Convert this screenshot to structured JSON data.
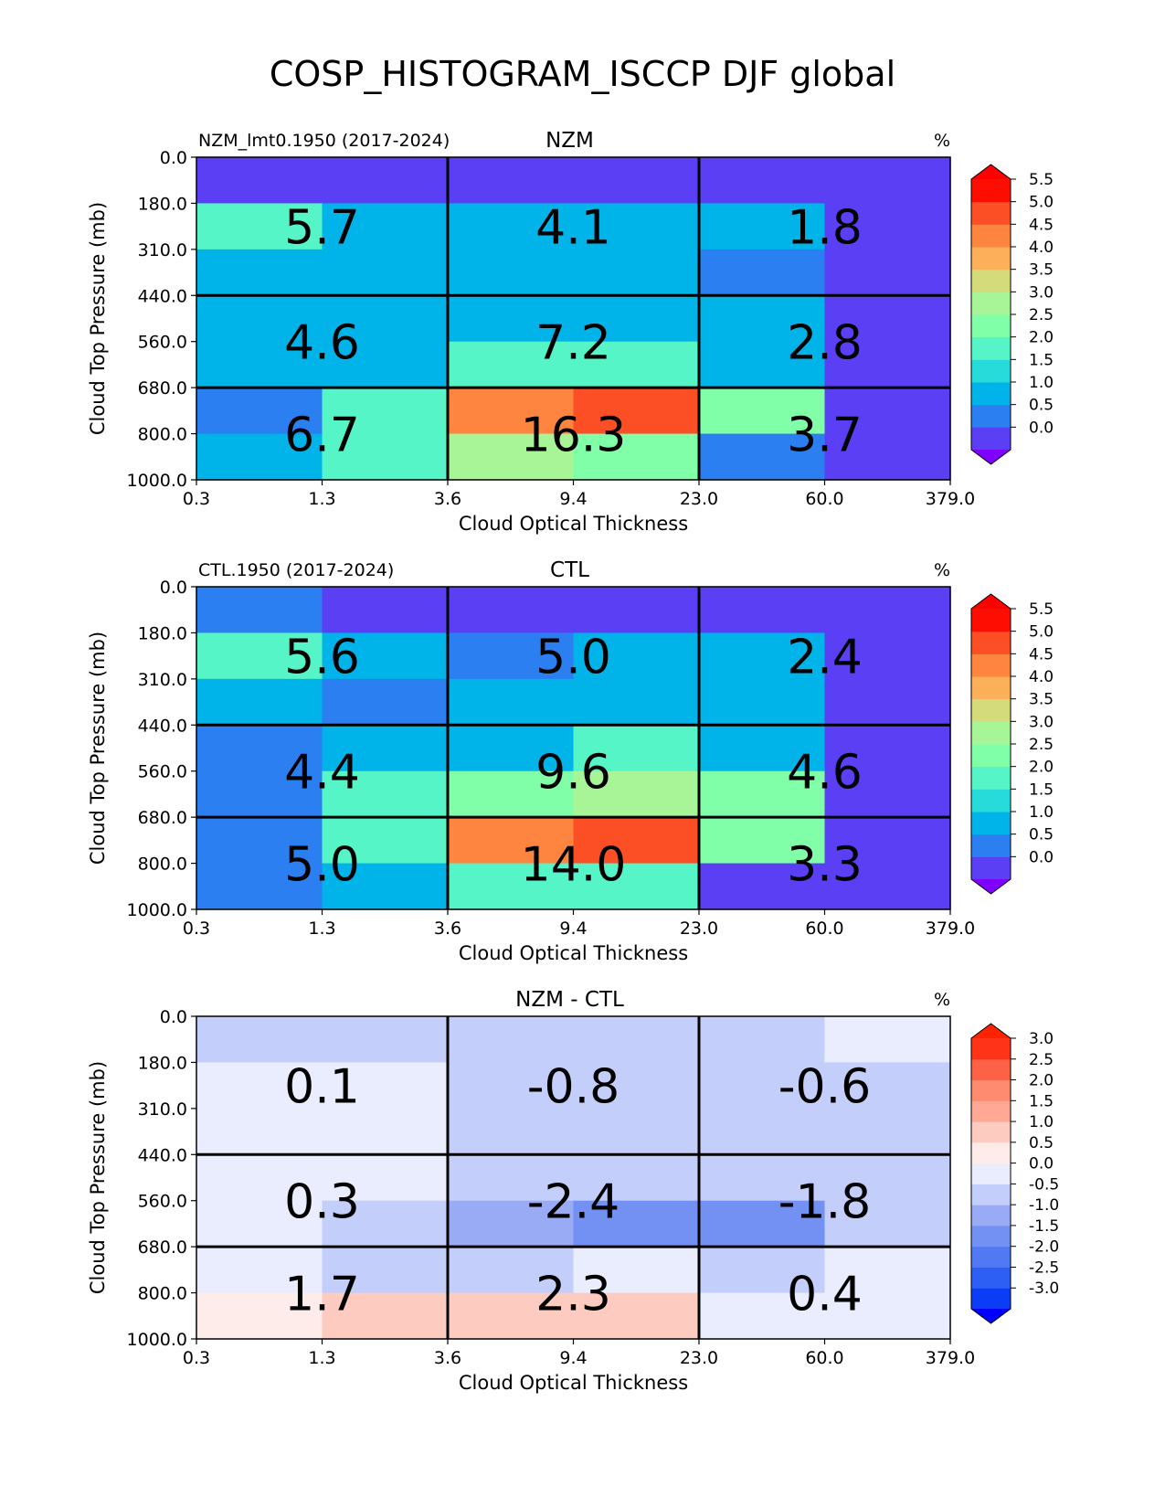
{
  "figure": {
    "suptitle": "COSP_HISTOGRAM_ISCCP DJF global"
  },
  "chart_data": [
    {
      "type": "heatmap",
      "panel": "test",
      "title": "NZM",
      "left_title": "NZM_lmt0.1950 (2017-2024)",
      "units": "%",
      "xlabel": "Cloud Optical Thickness",
      "ylabel": "Cloud Top Pressure (mb)",
      "x_ticks": [
        "0.3",
        "1.3",
        "3.6",
        "9.4",
        "23.0",
        "60.0",
        "379.0"
      ],
      "y_ticks": [
        "0.0",
        "180.0",
        "310.0",
        "440.0",
        "560.0",
        "680.0",
        "800.0",
        "1000.0"
      ],
      "cells": [
        [
          0.2,
          0.2,
          0.1,
          0.1,
          0.1,
          0.2
        ],
        [
          2.1,
          1.2,
          1.0,
          1.4,
          1.2,
          0.3
        ],
        [
          1.4,
          1.3,
          1.4,
          1.3,
          0.9,
          0.2
        ],
        [
          1.4,
          1.3,
          1.3,
          1.4,
          1.4,
          0.3
        ],
        [
          1.3,
          1.4,
          2.3,
          2.2,
          1.3,
          0.3
        ],
        [
          0.9,
          2.3,
          4.7,
          5.3,
          2.7,
          0.3
        ],
        [
          1.2,
          2.3,
          3.2,
          2.9,
          0.7,
          0.2
        ]
      ],
      "group_totals": [
        [
          "5.7",
          "4.1",
          "1.8"
        ],
        [
          "4.6",
          "7.2",
          "2.8"
        ],
        [
          "6.7",
          "16.3",
          "3.7"
        ]
      ],
      "colorbar": {
        "levels": [
          "0.0",
          "0.5",
          "1.0",
          "1.5",
          "2.0",
          "2.5",
          "3.0",
          "3.5",
          "4.0",
          "4.5",
          "5.0",
          "5.5"
        ],
        "colors": [
          "#5b3ff5",
          "#2c7ff0",
          "#00b3e8",
          "#28dbdb",
          "#55f5c8",
          "#80ffa8",
          "#a8f598",
          "#d4db7a",
          "#fdb05a",
          "#fe8540",
          "#fd4f25",
          "#fe0d03"
        ],
        "under": "#8000ff",
        "over": "#ff0000"
      }
    },
    {
      "type": "heatmap",
      "panel": "reference",
      "title": "CTL",
      "left_title": "CTL.1950 (2017-2024)",
      "units": "%",
      "xlabel": "Cloud Optical Thickness",
      "ylabel": "Cloud Top Pressure (mb)",
      "x_ticks": [
        "0.3",
        "1.3",
        "3.6",
        "9.4",
        "23.0",
        "60.0",
        "379.0"
      ],
      "y_ticks": [
        "0.0",
        "180.0",
        "310.0",
        "440.0",
        "560.0",
        "680.0",
        "800.0",
        "1000.0"
      ],
      "cells": [
        [
          0.8,
          0.3,
          0.2,
          0.2,
          0.2,
          0.2
        ],
        [
          2.2,
          1.3,
          0.9,
          1.3,
          1.3,
          0.3
        ],
        [
          1.3,
          0.8,
          1.4,
          1.2,
          1.2,
          0.3
        ],
        [
          0.9,
          1.3,
          1.3,
          2.2,
          1.3,
          0.3
        ],
        [
          0.9,
          2.2,
          2.7,
          3.2,
          2.7,
          0.3
        ],
        [
          0.9,
          2.3,
          4.6,
          5.2,
          2.6,
          0.3
        ],
        [
          0.8,
          1.3,
          2.3,
          2.2,
          0.3,
          0.2
        ]
      ],
      "group_totals": [
        [
          "5.6",
          "5.0",
          "2.4"
        ],
        [
          "4.4",
          "9.6",
          "4.6"
        ],
        [
          "5.0",
          "14.0",
          "3.3"
        ]
      ],
      "colorbar": {
        "levels": [
          "0.0",
          "0.5",
          "1.0",
          "1.5",
          "2.0",
          "2.5",
          "3.0",
          "3.5",
          "4.0",
          "4.5",
          "5.0",
          "5.5"
        ],
        "colors": [
          "#5b3ff5",
          "#2c7ff0",
          "#00b3e8",
          "#28dbdb",
          "#55f5c8",
          "#80ffa8",
          "#a8f598",
          "#d4db7a",
          "#fdb05a",
          "#fe8540",
          "#fd4f25",
          "#fe0d03"
        ],
        "under": "#8000ff",
        "over": "#ff0000"
      }
    },
    {
      "type": "heatmap",
      "panel": "difference",
      "title": "NZM - CTL",
      "left_title": "",
      "units": "%",
      "xlabel": "Cloud Optical Thickness",
      "ylabel": "Cloud Top Pressure (mb)",
      "x_ticks": [
        "0.3",
        "1.3",
        "3.6",
        "9.4",
        "23.0",
        "60.0",
        "379.0"
      ],
      "y_ticks": [
        "0.0",
        "180.0",
        "310.0",
        "440.0",
        "560.0",
        "680.0",
        "800.0",
        "1000.0"
      ],
      "cells": [
        [
          -0.2,
          -0.2,
          -0.2,
          -0.2,
          -0.2,
          0.2
        ],
        [
          0.2,
          0.2,
          -0.2,
          -0.2,
          -0.2,
          -0.2
        ],
        [
          0.2,
          0.2,
          -0.2,
          -0.2,
          -0.2,
          -0.2
        ],
        [
          0.2,
          0.2,
          -0.2,
          -0.2,
          -0.2,
          -0.2
        ],
        [
          0.2,
          -0.2,
          -0.7,
          -1.2,
          -1.2,
          -0.2
        ],
        [
          0.2,
          -0.2,
          -0.2,
          0.2,
          -0.2,
          0.2
        ],
        [
          0.7,
          1.2,
          1.2,
          1.2,
          0.2,
          0.2
        ]
      ],
      "group_totals": [
        [
          "0.1",
          "-0.8",
          "-0.6"
        ],
        [
          "0.3",
          "-2.4",
          "-1.8"
        ],
        [
          "1.7",
          "2.3",
          "0.4"
        ]
      ],
      "colorbar": {
        "levels": [
          "-3.0",
          "-2.5",
          "-2.0",
          "-1.5",
          "-1.0",
          "-0.5",
          "0.0",
          "0.5",
          "1.0",
          "1.5",
          "2.0",
          "2.5",
          "3.0"
        ],
        "colors": [
          "#0a3df5",
          "#2d5ff5",
          "#5079f3",
          "#7390f3",
          "#9aabf5",
          "#c3cefa",
          "#e9edfe",
          "#fdecea",
          "#fecbc1",
          "#fea896",
          "#fe8a70",
          "#fd6146",
          "#fe3318"
        ],
        "under": "#0000ff",
        "over": "#ff2200"
      }
    }
  ]
}
